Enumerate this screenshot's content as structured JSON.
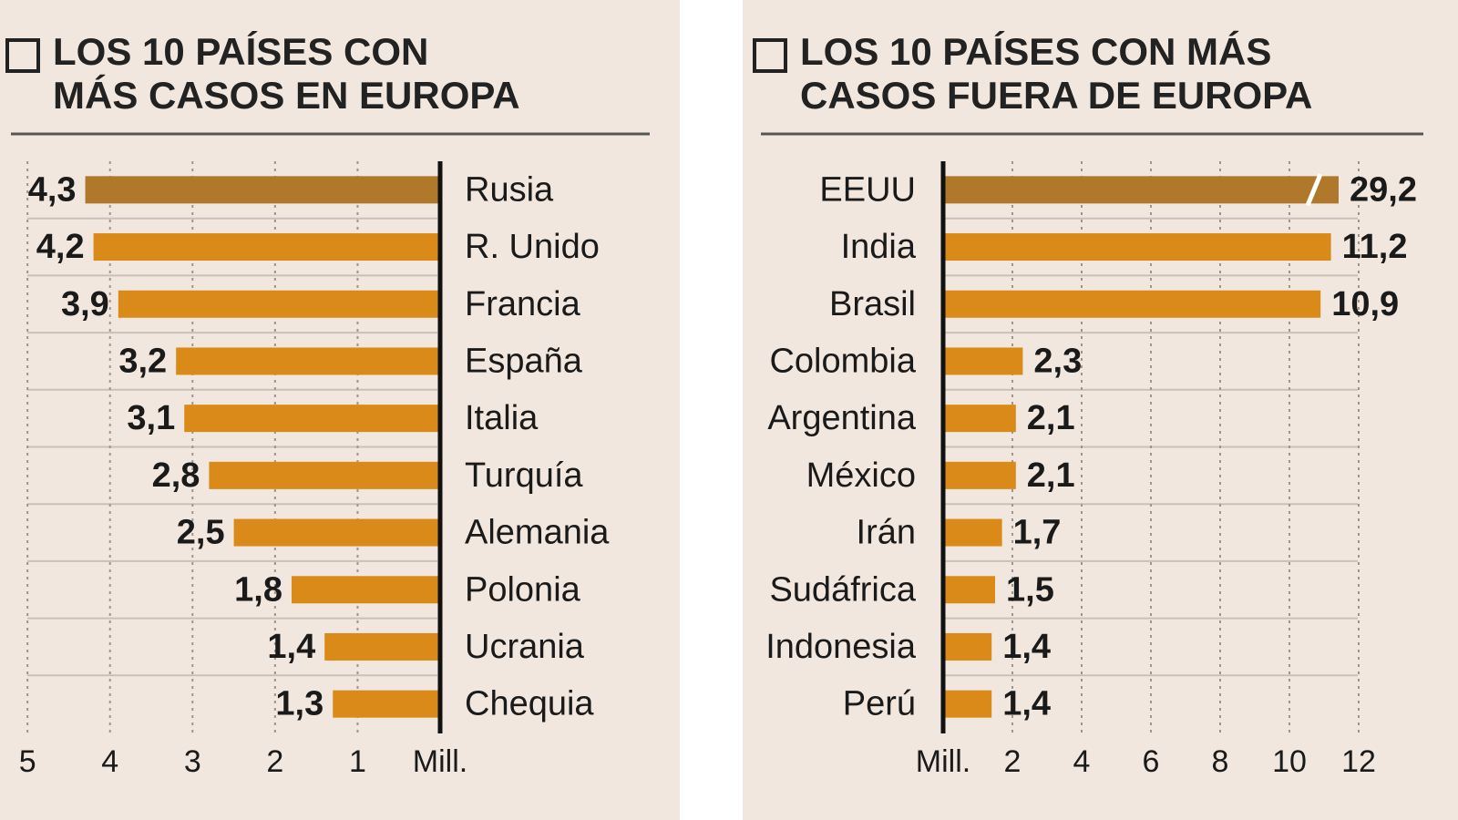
{
  "chart_data": [
    {
      "type": "bar",
      "title": [
        "LOS 10 PAÍSES CON",
        "MÁS CASOS EN EUROPA"
      ],
      "categories": [
        "Rusia",
        "R. Unido",
        "Francia",
        "España",
        "Italia",
        "Turquía",
        "Alemania",
        "Polonia",
        "Ucrania",
        "Chequia"
      ],
      "values": [
        4.3,
        4.2,
        3.9,
        3.2,
        3.1,
        2.8,
        2.5,
        1.8,
        1.4,
        1.3
      ],
      "value_labels": [
        "4,3",
        "4,2",
        "3,9",
        "3,2",
        "3,1",
        "2,8",
        "2,5",
        "1,8",
        "1,4",
        "1,3"
      ],
      "colors": [
        "#b0782a",
        "#d98a18",
        "#d98a18",
        "#d98a18",
        "#d98a18",
        "#d98a18",
        "#d98a18",
        "#d98a18",
        "#d98a18",
        "#d98a18"
      ],
      "xlim": [
        5.3,
        0
      ],
      "xticks": [
        5,
        4,
        3,
        2,
        1,
        {
          "value": 0,
          "label": "Mill."
        }
      ],
      "grid": true
    },
    {
      "type": "bar",
      "title": [
        "LOS 10 PAÍSES CON MÁS",
        "CASOS FUERA DE EUROPA"
      ],
      "categories": [
        "EEUU",
        "India",
        "Brasil",
        "Colombia",
        "Argentina",
        "México",
        "Irán",
        "Sudáfrica",
        "Indonesia",
        "Perú"
      ],
      "values": [
        29.2,
        11.2,
        10.9,
        2.3,
        2.1,
        2.1,
        1.7,
        1.5,
        1.4,
        1.4
      ],
      "value_labels": [
        "29,2",
        "11,2",
        "10,9",
        "2,3",
        "2,1",
        "2,1",
        "1,7",
        "1,5",
        "1,4",
        "1,4"
      ],
      "colors": [
        "#b0782a",
        "#d98a18",
        "#d98a18",
        "#d98a18",
        "#d98a18",
        "#d98a18",
        "#d98a18",
        "#d98a18",
        "#d98a18",
        "#d98a18"
      ],
      "xlim": [
        0,
        12
      ],
      "xticks": [
        {
          "value": 0,
          "label": "Mill."
        },
        2,
        4,
        6,
        8,
        10,
        12
      ],
      "grid": true
    }
  ]
}
